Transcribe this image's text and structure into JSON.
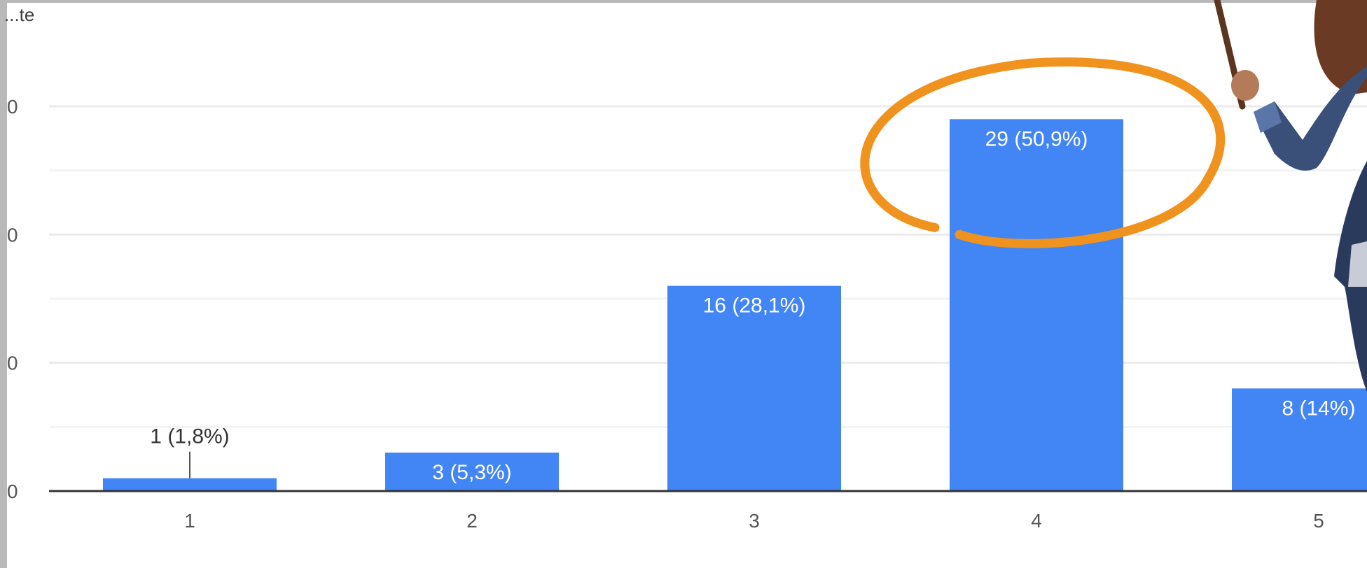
{
  "chart_data": {
    "type": "bar",
    "title": "...te",
    "categories": [
      "1",
      "2",
      "3",
      "4",
      "5"
    ],
    "values": [
      1,
      3,
      16,
      29,
      8
    ],
    "data_labels": [
      "1 (1,8%)",
      "3 (5,3%)",
      "16 (28,1%)",
      "29 (50,9%)",
      "8 (14%)"
    ],
    "y_ticks": [
      "0",
      "0",
      "0",
      "0"
    ],
    "ylim": [
      0,
      30
    ],
    "grid": true,
    "legend": "none",
    "bar_color": "#4285f4",
    "highlight_color": "#f0931e",
    "highlighted_category": "4"
  }
}
